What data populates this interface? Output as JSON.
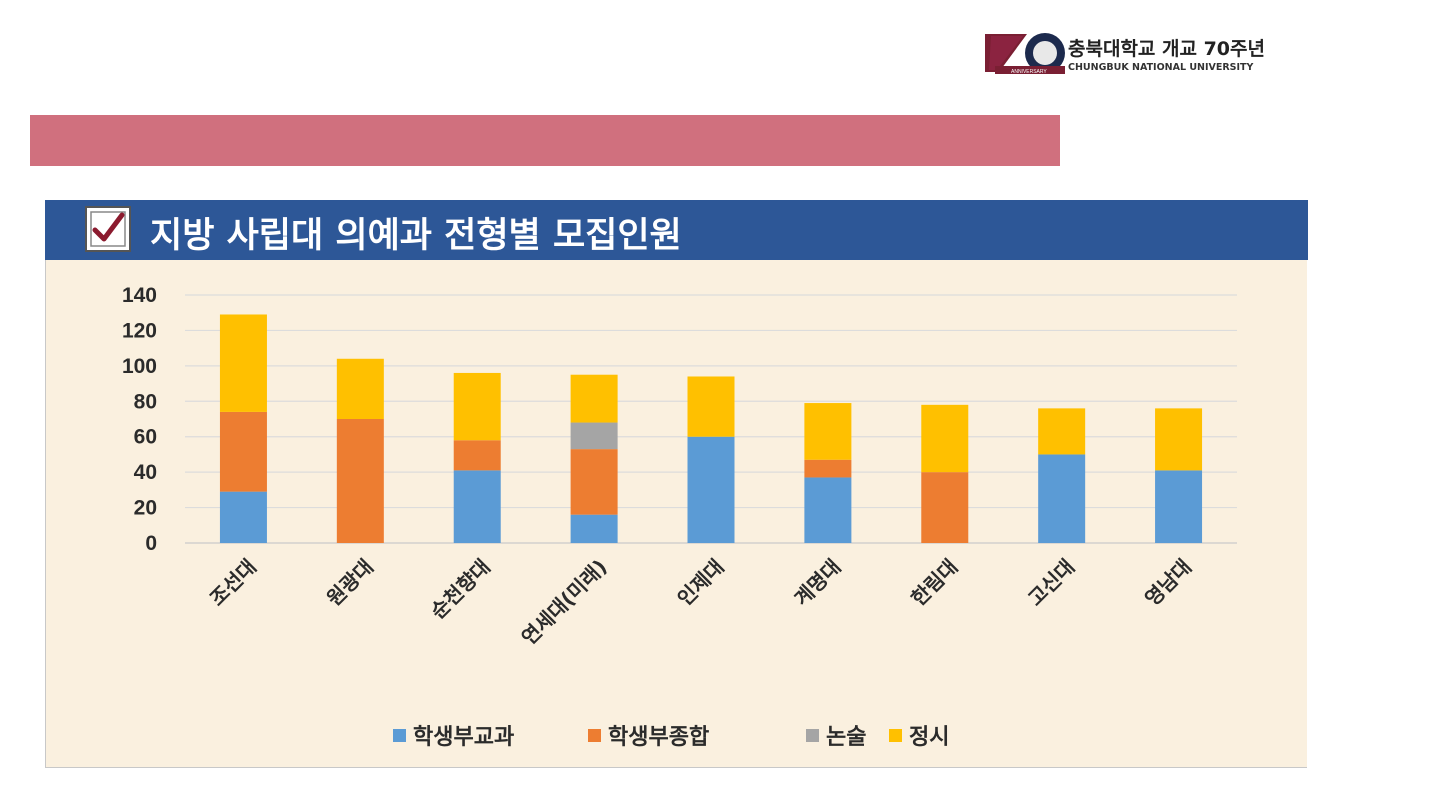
{
  "logo": {
    "number": "70",
    "ribbon_text": "ANNIVERSARY",
    "title": "충북대학교 개교 70주년",
    "subtitle": "CHUNGBUK NATIONAL UNIVERSITY"
  },
  "header": {
    "title": "지방 사립대 의예과 전형별 모집인원"
  },
  "colors": {
    "banner": "#d0707e",
    "header": "#2d5797",
    "panel": "#faf0df"
  },
  "chart_data": {
    "type": "bar",
    "stacked": true,
    "title": "지방 사립대 의예과 전형별 모집인원",
    "xlabel": "",
    "ylabel": "",
    "ylim": [
      0,
      140
    ],
    "yticks": [
      0,
      20,
      40,
      60,
      80,
      100,
      120,
      140
    ],
    "grid": true,
    "legend_position": "bottom",
    "categories": [
      "조선대",
      "원광대",
      "순천향대",
      "연세대(미래)",
      "인제대",
      "계명대",
      "한림대",
      "고신대",
      "영남대"
    ],
    "series": [
      {
        "name": "학생부교과",
        "color": "#5b9bd5",
        "values": [
          29,
          0,
          41,
          16,
          60,
          37,
          0,
          50,
          41
        ]
      },
      {
        "name": "학생부종합",
        "color": "#ed7d31",
        "values": [
          45,
          70,
          17,
          37,
          0,
          10,
          40,
          0,
          0
        ]
      },
      {
        "name": "논술",
        "color": "#a5a5a5",
        "values": [
          0,
          0,
          0,
          15,
          0,
          0,
          0,
          0,
          0
        ]
      },
      {
        "name": "정시",
        "color": "#ffc000",
        "values": [
          55,
          34,
          38,
          27,
          34,
          32,
          38,
          26,
          35
        ]
      }
    ]
  }
}
